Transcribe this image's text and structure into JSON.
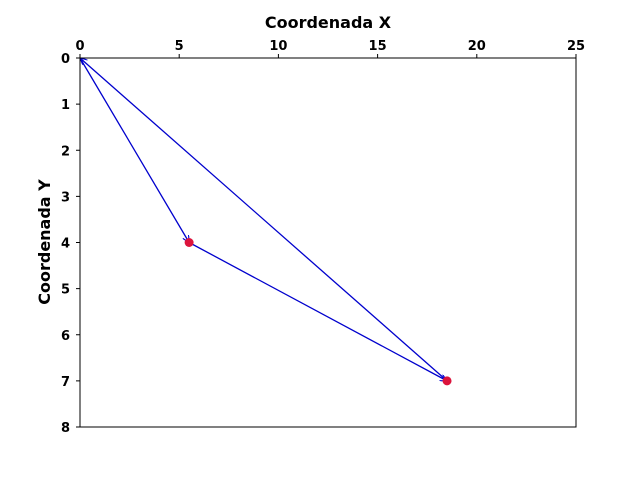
{
  "chart_data": {
    "type": "scatter",
    "xlabel": "Coordenada X",
    "ylabel": "Coordenada Y",
    "xlim": [
      0,
      25
    ],
    "ylim": [
      8,
      0
    ],
    "x_axis_position": "top",
    "y_axis_inverted": true,
    "grid": false,
    "x_ticks": [
      0,
      5,
      10,
      15,
      20,
      25
    ],
    "y_ticks": [
      0,
      1,
      2,
      3,
      4,
      5,
      6,
      7,
      8
    ],
    "points": [
      {
        "x": 5.5,
        "y": 4
      },
      {
        "x": 18.5,
        "y": 7
      }
    ],
    "point_color": "#dc143c",
    "arrows": [
      {
        "from": [
          0,
          0
        ],
        "to": [
          5.5,
          4
        ]
      },
      {
        "from": [
          5.5,
          4
        ],
        "to": [
          18.5,
          7
        ]
      },
      {
        "from": [
          18.5,
          7
        ],
        "to": [
          0,
          0
        ]
      }
    ],
    "arrow_color": "#0000cd"
  }
}
